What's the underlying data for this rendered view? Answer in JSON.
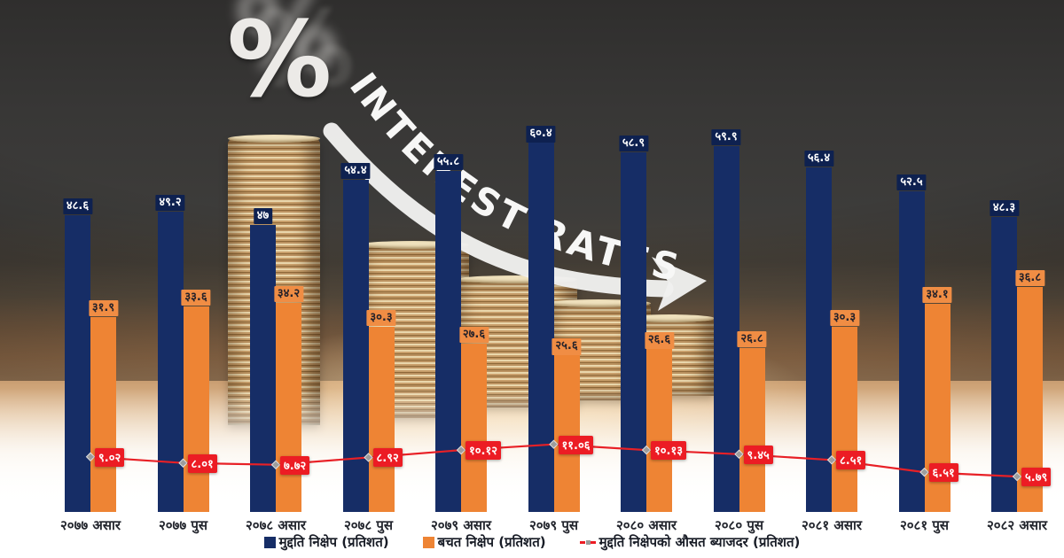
{
  "hero": {
    "percent_symbol": "%",
    "arc_text": "INTEREST RATES"
  },
  "chart_data": {
    "type": "bar",
    "title": "INTEREST RATES",
    "categories": [
      "२०७७ असार",
      "२०७७ पुस",
      "२०७८ असार",
      "२०७८ पुस",
      "२०७९ असार",
      "२०७९ पुस",
      "२०८० असार",
      "२०८० पुस",
      "२०८१ असार",
      "२०८१ पुस",
      "२०८२ असार"
    ],
    "series": [
      {
        "name": "मुद्दति निक्षेप (प्रतिशत)",
        "type": "bar",
        "color": "#162d66",
        "label_bg": "#0e2150",
        "label_color": "#ffffff",
        "values": [
          48.6,
          49.2,
          47,
          54.4,
          55.8,
          60.4,
          58.9,
          59.9,
          56.4,
          52.5,
          48.3
        ],
        "value_labels": [
          "४८.६",
          "४९.२",
          "४७",
          "५४.४",
          "५५.८",
          "६०.४",
          "५८.९",
          "५९.९",
          "५६.४",
          "५२.५",
          "४८.३"
        ]
      },
      {
        "name": "बचत निक्षेप (प्रतिशत)",
        "type": "bar",
        "color": "#ee8434",
        "label_bg": "#f08d44",
        "label_color": "#25222a",
        "values": [
          31.9,
          33.6,
          34.2,
          30.3,
          27.6,
          25.6,
          26.6,
          26.8,
          30.3,
          34.1,
          36.8
        ],
        "value_labels": [
          "३१.९",
          "३३.६",
          "३४.२",
          "३०.३",
          "२७.६",
          "२५.६",
          "२६.६",
          "२६.८",
          "३०.३",
          "३४.१",
          "३६.८"
        ]
      },
      {
        "name": "मुद्दति निक्षेपको औसत ब्याजदर (प्रतिशत)",
        "type": "line",
        "color": "#e82026",
        "label_bg": "#ec1c24",
        "label_color": "#ffffff",
        "values": [
          9.02,
          8.01,
          7.72,
          8.92,
          10.12,
          11.06,
          10.13,
          9.45,
          8.51,
          6.51,
          5.79
        ],
        "value_labels": [
          "९.०२",
          "८.०१",
          "७.७२",
          "८.९२",
          "१०.१२",
          "११.०६",
          "१०.१३",
          "९.४५",
          "८.५१",
          "६.५१",
          "५.७९"
        ]
      }
    ],
    "ylim": [
      0,
      63
    ],
    "grid": false,
    "legend_position": "bottom"
  },
  "legend": {
    "items": [
      {
        "label": "मुद्दति निक्षेप (प्रतिशत)",
        "marker": "square",
        "color": "#162d66"
      },
      {
        "label": "बचत निक्षेप (प्रतिशत)",
        "marker": "square",
        "color": "#ee8434"
      },
      {
        "label": "मुद्दति निक्षेपको औसत ब्याजदर (प्रतिशत)",
        "marker": "dashed-line",
        "color": "#ec1c24"
      }
    ]
  }
}
